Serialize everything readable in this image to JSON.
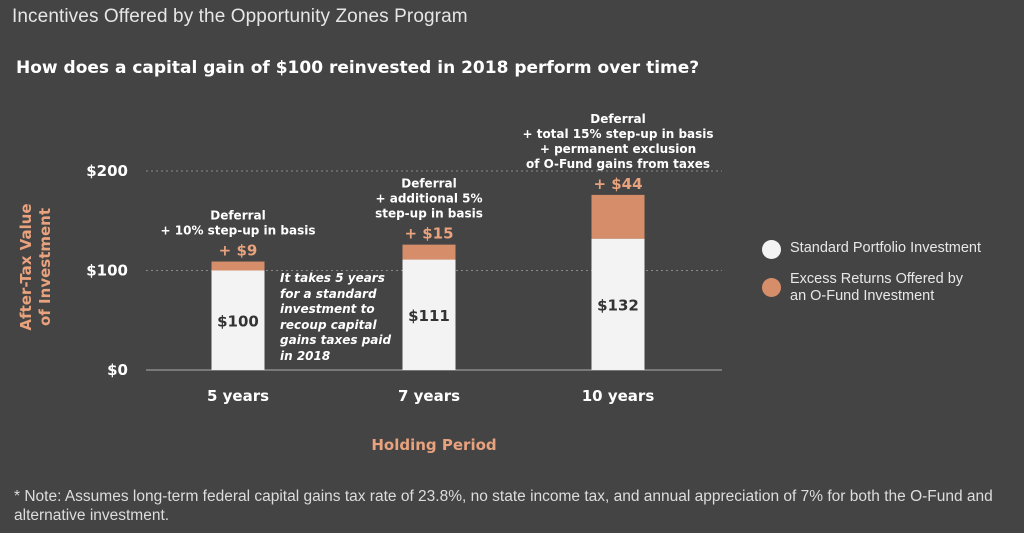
{
  "header": {
    "title": "Incentives Offered by the Opportunity Zones Program",
    "question": "How does a capital gain of $100 reinvested in 2018 perform over time?"
  },
  "colors": {
    "background": "#444444",
    "standard": "#f3f3f3",
    "excess": "#d68e6a",
    "accent_text": "#e9a27e",
    "grid": "#8a8a8a"
  },
  "annotation": "It takes 5 years for a standard investment to recoup capital gains taxes paid in 2018",
  "legend": {
    "items": [
      {
        "label": "Standard Portfolio Investment",
        "color": "#f3f3f3"
      },
      {
        "label": "Excess Returns Offered by an O-Fund Investment",
        "color": "#d68e6a"
      }
    ]
  },
  "chart_data": {
    "type": "bar",
    "stacked": true,
    "categories": [
      "5 years",
      "7 years",
      "10 years"
    ],
    "series": [
      {
        "name": "Standard Portfolio Investment",
        "values": [
          100,
          111,
          132
        ],
        "labels": [
          "$100",
          "$111",
          "$132"
        ]
      },
      {
        "name": "Excess Returns Offered by an O-Fund Investment",
        "values": [
          9,
          15,
          44
        ],
        "labels": [
          "+ $9",
          "+ $15",
          "+ $44"
        ]
      }
    ],
    "bar_notes": [
      [
        "Deferral",
        "+ 10% step-up in basis"
      ],
      [
        "Deferral",
        "+ additional 5%",
        "step-up in basis"
      ],
      [
        "Deferral",
        "+ total 15% step-up in basis",
        "+ permanent exclusion",
        "of O-Fund gains from taxes"
      ]
    ],
    "xlabel": "Holding Period",
    "ylabel": [
      "After-Tax Value",
      "of Investment"
    ],
    "yticks": [
      0,
      100,
      200
    ],
    "ytick_labels": [
      "$0",
      "$100",
      "$200"
    ],
    "ylim": [
      0,
      200
    ],
    "grid": true
  },
  "footnote": "* Note: Assumes long-term federal capital gains tax rate of 23.8%, no state income tax, and annual appreciation of 7% for both the O-Fund and alternative investment."
}
